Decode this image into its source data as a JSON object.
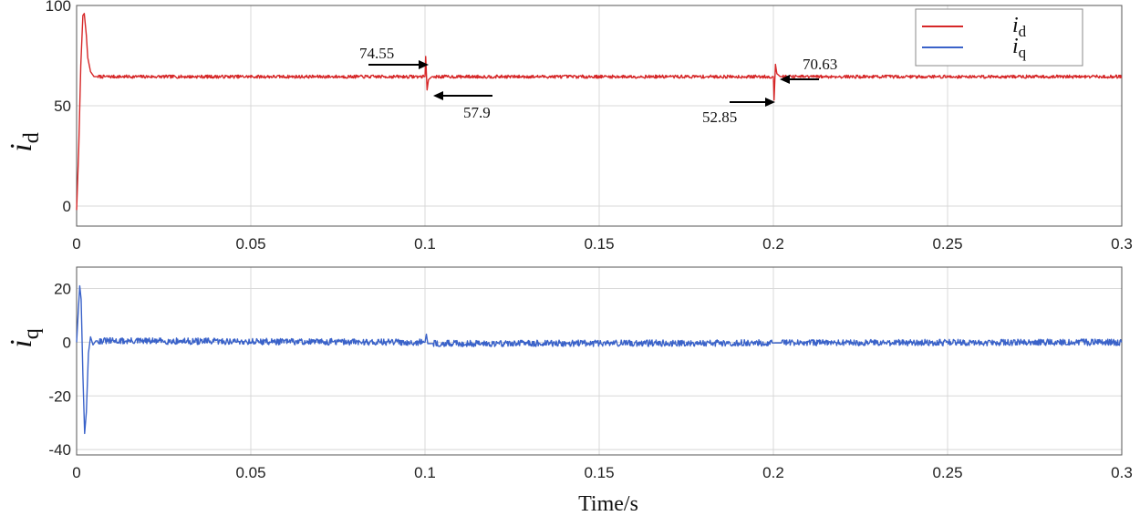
{
  "chart_data": [
    {
      "type": "line",
      "ylabel": "i",
      "ylabel_sub": "d",
      "xlim": [
        0,
        0.3
      ],
      "ylim": [
        -10,
        100
      ],
      "xticks": [
        0,
        0.05,
        0.1,
        0.15,
        0.2,
        0.25,
        0.3
      ],
      "xtick_labels": [
        "0",
        "0.05",
        "0.1",
        "0.15",
        "0.2",
        "0.25",
        "0.3"
      ],
      "yticks": [
        0,
        50,
        100
      ],
      "ytick_labels": [
        "0",
        "50",
        "100"
      ],
      "grid": true,
      "legend": {
        "position": "top-right",
        "entries": [
          {
            "symbol": "i",
            "sub": "d",
            "color": "#d62728"
          },
          {
            "symbol": "i",
            "sub": "q",
            "color": "#3a62c9"
          }
        ]
      },
      "series": [
        {
          "color": "#d62728",
          "x": [
            0,
            0.0006,
            0.0012,
            0.0018,
            0.0022,
            0.0028,
            0.0032,
            0.004,
            0.005,
            0.1,
            0.1002,
            0.1006,
            0.101,
            0.102,
            0.2,
            0.2002,
            0.2006,
            0.201,
            0.202,
            0.3
          ],
          "y": [
            -2,
            28,
            70,
            95,
            96,
            85,
            74,
            67,
            64.5,
            64.5,
            74.55,
            57.9,
            63,
            64.5,
            64.5,
            52.85,
            70.63,
            66,
            64.5,
            64.5
          ]
        }
      ],
      "annotations": [
        {
          "text": "74.55",
          "x": 0.1,
          "y": 74.55
        },
        {
          "text": "57.9",
          "x": 0.1006,
          "y": 57.9
        },
        {
          "text": "52.85",
          "x": 0.2,
          "y": 52.85
        },
        {
          "text": "70.63",
          "x": 0.2006,
          "y": 70.63
        }
      ]
    },
    {
      "type": "line",
      "xlabel": "Time/s",
      "ylabel": "i",
      "ylabel_sub": "q",
      "xlim": [
        0,
        0.3
      ],
      "ylim": [
        -42,
        28
      ],
      "xticks": [
        0,
        0.05,
        0.1,
        0.15,
        0.2,
        0.25,
        0.3
      ],
      "xtick_labels": [
        "0",
        "0.05",
        "0.1",
        "0.15",
        "0.2",
        "0.25",
        "0.3"
      ],
      "yticks": [
        -40,
        -20,
        0,
        20
      ],
      "ytick_labels": [
        "-40",
        "-20",
        "0",
        "20"
      ],
      "grid": true,
      "series": [
        {
          "color": "#3a62c9",
          "x": [
            0,
            0.0005,
            0.0009,
            0.0013,
            0.0018,
            0.0023,
            0.0028,
            0.0034,
            0.004,
            0.0047,
            0.0055,
            0.1,
            0.1004,
            0.1008,
            0.3
          ],
          "y": [
            0,
            12,
            21,
            16,
            -12,
            -34,
            -26,
            -4,
            2,
            -1,
            0.5,
            0,
            3,
            -0.5,
            0
          ]
        }
      ]
    }
  ]
}
